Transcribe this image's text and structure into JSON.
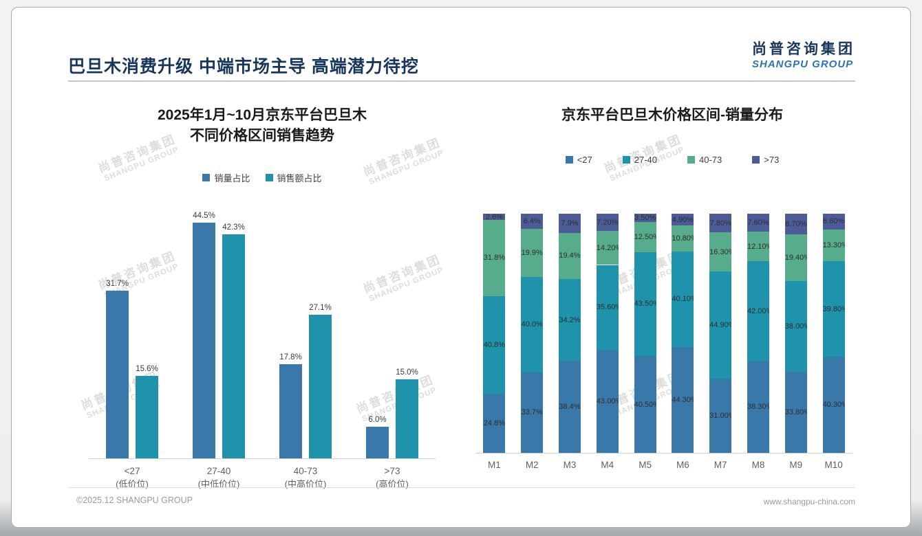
{
  "page": {
    "header_title": "巴旦木消费升级 中端市场主导 高端潜力待挖",
    "logo": {
      "cn": "尚普咨询集团",
      "en": "SHANGPU GROUP"
    },
    "footer": {
      "left": "©2025.12 SHANGPU GROUP",
      "right": "www.shangpu-china.com"
    },
    "watermark": {
      "cn": "尚普咨询集团",
      "en": "SHANGPU GROUP"
    }
  },
  "colors": {
    "blue": "#3A78A9",
    "teal": "#1E93AB",
    "green": "#57AC8C",
    "slate": "#4D5B99",
    "title_navy": "#17365D",
    "logo_blue": "#2E74B5"
  },
  "chart_data": [
    {
      "type": "bar",
      "title": "2025年1月~10月京东平台巴旦木\n不同价格区间销售趋势",
      "categories": [
        "<27",
        "27-40",
        "40-73",
        ">73"
      ],
      "category_sublabels": [
        "(低价位)",
        "(中低价位)",
        "(中高价位)",
        "(高价位)"
      ],
      "series": [
        {
          "name": "销量占比",
          "color": "#3A78A9",
          "values": [
            31.7,
            44.5,
            17.8,
            6.0
          ],
          "labels": [
            "31.7%",
            "44.5%",
            "17.8%",
            "6.0%"
          ]
        },
        {
          "name": "销售额占比",
          "color": "#1E93AB",
          "values": [
            15.6,
            42.3,
            27.1,
            15.0
          ],
          "labels": [
            "15.6%",
            "42.3%",
            "27.1%",
            "15.0%"
          ]
        }
      ],
      "ylabel": "",
      "xlabel": "",
      "ylim": [
        0,
        48
      ],
      "grid": false,
      "legend_position": "top"
    },
    {
      "type": "stacked-bar",
      "title": "京东平台巴旦木价格区间-销量分布",
      "categories": [
        "M1",
        "M2",
        "M3",
        "M4",
        "M5",
        "M6",
        "M7",
        "M8",
        "M9",
        "M10"
      ],
      "series": [
        {
          "name": "<27",
          "color": "#3A78A9",
          "values": [
            24.8,
            33.7,
            38.4,
            43.0,
            40.5,
            44.3,
            31.0,
            38.3,
            33.8,
            40.3
          ],
          "labels": [
            "24.8%",
            "33.7%",
            "38.4%",
            "43.00%",
            "40.50%",
            "44.30%",
            "31.00%",
            "38.30%",
            "33.80%",
            "40.30%"
          ]
        },
        {
          "name": "27-40",
          "color": "#1E93AB",
          "values": [
            40.8,
            40.0,
            34.2,
            35.6,
            43.5,
            40.1,
            44.9,
            42.0,
            38.0,
            39.8
          ],
          "labels": [
            "40.8%",
            "40.0%",
            "34.2%",
            "35.60%",
            "43.50%",
            "40.10%",
            "44.90%",
            "42.00%",
            "38.00%",
            "39.80%"
          ]
        },
        {
          "name": "40-73",
          "color": "#57AC8C",
          "values": [
            31.8,
            19.9,
            19.4,
            14.2,
            12.5,
            10.8,
            16.3,
            12.1,
            19.4,
            13.3
          ],
          "labels": [
            "31.8%",
            "19.9%",
            "19.4%",
            "14.20%",
            "12.50%",
            "10.80%",
            "16.30%",
            "12.10%",
            "19.40%",
            "13.30%"
          ]
        },
        {
          "name": ">73",
          "color": "#4D5B99",
          "values": [
            2.6,
            6.4,
            7.9,
            7.2,
            3.5,
            4.9,
            7.8,
            7.6,
            8.7,
            6.6
          ],
          "labels": [
            "2.6%",
            "6.4%",
            "7.9%",
            "7.20%",
            "3.50%",
            "4.90%",
            "7.80%",
            "7.60%",
            "8.70%",
            "6.60%"
          ]
        }
      ],
      "ylabel": "",
      "xlabel": "",
      "ylim": [
        0,
        100
      ],
      "grid": false,
      "legend_position": "top"
    }
  ]
}
